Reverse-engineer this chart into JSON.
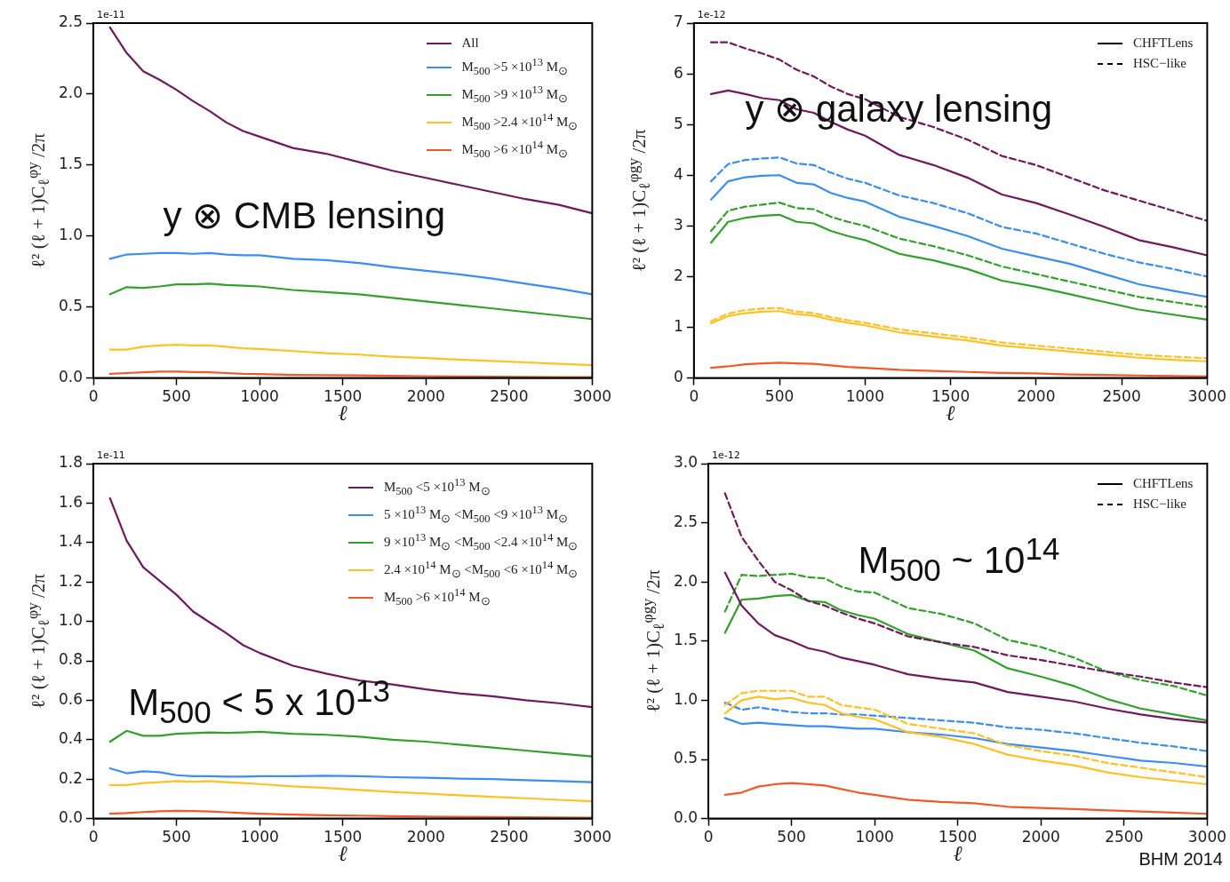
{
  "chart_data": [
    {
      "type": "line",
      "xlabel": "ℓ",
      "ylabel": "ℓ² (ℓ + 1)C$_{ℓ}$$^{φy}$ /2π",
      "annotations": [
        "1e-11",
        "y ⊗ CMB lensing"
      ],
      "legend": "top right",
      "grid": false,
      "marker": "none",
      "xlim": [
        0,
        3000
      ],
      "xticks": [
        0,
        500,
        1000,
        1500,
        2000,
        2500,
        3000
      ],
      "ylim": [
        0,
        2.5
      ],
      "yticks": [
        {
          "value": 0,
          "label": "0.0"
        },
        0.5,
        {
          "value": 1,
          "label": "1.0"
        },
        1.5,
        {
          "value": 2,
          "label": "2.0"
        },
        2.5
      ],
      "x": [
        100,
        200,
        300,
        400,
        500,
        600,
        700,
        800,
        900,
        1000,
        1200,
        1400,
        1600,
        1800,
        2000,
        2200,
        2400,
        2600,
        2800,
        3000
      ],
      "series": [
        {
          "name": "All",
          "color": "#6e1a5e",
          "line_style": "solid",
          "values": [
            2.47,
            2.29,
            2.16,
            2.1,
            2.03,
            1.95,
            1.88,
            1.8,
            1.74,
            1.7,
            1.62,
            1.58,
            1.52,
            1.46,
            1.41,
            1.36,
            1.31,
            1.26,
            1.22,
            1.16
          ]
        },
        {
          "name": "M$_{500}$ >5 ×10$^{13}$ M$_{⊙}$",
          "color": "#3b8df0",
          "line_style": "solid",
          "values": [
            0.84,
            0.87,
            0.875,
            0.88,
            0.88,
            0.875,
            0.88,
            0.87,
            0.865,
            0.865,
            0.84,
            0.83,
            0.81,
            0.78,
            0.755,
            0.73,
            0.7,
            0.665,
            0.63,
            0.59
          ]
        },
        {
          "name": "M$_{500}$ >9 ×10$^{13}$ M$_{⊙}$",
          "color": "#33a02c",
          "line_style": "solid",
          "values": [
            0.59,
            0.64,
            0.635,
            0.645,
            0.66,
            0.66,
            0.665,
            0.655,
            0.65,
            0.645,
            0.62,
            0.605,
            0.59,
            0.565,
            0.54,
            0.515,
            0.49,
            0.465,
            0.44,
            0.415
          ]
        },
        {
          "name": "M$_{500}$ >2.4 ×10$^{14}$ M$_{⊙}$",
          "color": "#ffc125",
          "line_style": "solid",
          "values": [
            0.2,
            0.2,
            0.22,
            0.23,
            0.235,
            0.23,
            0.23,
            0.22,
            0.21,
            0.205,
            0.19,
            0.175,
            0.165,
            0.15,
            0.14,
            0.13,
            0.12,
            0.11,
            0.1,
            0.09
          ]
        },
        {
          "name": "M$_{500}$ >6 ×10$^{14}$ M$_{⊙}$",
          "color": "#f05a28",
          "line_style": "solid",
          "values": [
            0.03,
            0.035,
            0.04,
            0.045,
            0.045,
            0.042,
            0.04,
            0.035,
            0.03,
            0.028,
            0.022,
            0.02,
            0.018,
            0.015,
            0.013,
            0.011,
            0.01,
            0.008,
            0.007,
            0.006
          ]
        }
      ]
    },
    {
      "type": "line",
      "xlabel": "ℓ",
      "ylabel": "ℓ² (ℓ + 1)C$_{ℓ}$$^{φgy}$ /2π",
      "annotations": [
        "1e-12",
        "y ⊗ galaxy lensing"
      ],
      "legend": "top right",
      "grid": false,
      "marker": "none",
      "xlim": [
        0,
        3000
      ],
      "xticks": [
        0,
        500,
        1000,
        1500,
        2000,
        2500,
        3000
      ],
      "ylim": [
        0,
        7
      ],
      "yticks": [
        0,
        1,
        2,
        3,
        4,
        5,
        6,
        7
      ],
      "x": [
        100,
        200,
        300,
        400,
        500,
        600,
        700,
        800,
        900,
        1000,
        1200,
        1400,
        1600,
        1800,
        2000,
        2200,
        2400,
        2600,
        2800,
        3000
      ],
      "series": [
        {
          "name": "CHFTLens",
          "color": "#000000",
          "line_style": "solid",
          "values": [
            null,
            null,
            null,
            null,
            null,
            null,
            null,
            null,
            null,
            null,
            null,
            null,
            null,
            null,
            null,
            null,
            null,
            null,
            null,
            null
          ]
        },
        {
          "name": "HSC−like",
          "color": "#000000",
          "line_style": "dashed",
          "values": [
            null,
            null,
            null,
            null,
            null,
            null,
            null,
            null,
            null,
            null,
            null,
            null,
            null,
            null,
            null,
            null,
            null,
            null,
            null,
            null
          ]
        },
        {
          "color": "#6e1a5e",
          "line_style": "solid",
          "values": [
            5.6,
            5.67,
            5.6,
            5.52,
            5.48,
            5.3,
            5.23,
            5.05,
            4.9,
            4.78,
            4.4,
            4.2,
            3.95,
            3.62,
            3.45,
            3.22,
            2.98,
            2.72,
            2.58,
            2.42
          ]
        },
        {
          "color": "#6e1a5e",
          "line_style": "dashed",
          "values": [
            6.62,
            6.62,
            6.5,
            6.4,
            6.28,
            6.08,
            5.95,
            5.75,
            5.6,
            5.5,
            5.15,
            4.95,
            4.7,
            4.38,
            4.2,
            3.95,
            3.7,
            3.5,
            3.3,
            3.1
          ]
        },
        {
          "color": "#3b8df0",
          "line_style": "solid",
          "values": [
            3.52,
            3.88,
            3.96,
            3.99,
            4.0,
            3.85,
            3.82,
            3.65,
            3.55,
            3.48,
            3.18,
            3.0,
            2.8,
            2.55,
            2.4,
            2.25,
            2.05,
            1.85,
            1.72,
            1.6
          ]
        },
        {
          "color": "#3b8df0",
          "line_style": "dashed",
          "values": [
            3.88,
            4.22,
            4.3,
            4.33,
            4.35,
            4.23,
            4.2,
            4.05,
            3.93,
            3.85,
            3.6,
            3.45,
            3.25,
            2.98,
            2.85,
            2.65,
            2.45,
            2.28,
            2.15,
            2.0
          ]
        },
        {
          "color": "#33a02c",
          "line_style": "solid",
          "values": [
            2.67,
            3.08,
            3.16,
            3.2,
            3.22,
            3.08,
            3.05,
            2.9,
            2.8,
            2.72,
            2.45,
            2.32,
            2.15,
            1.92,
            1.8,
            1.65,
            1.5,
            1.35,
            1.25,
            1.15
          ]
        },
        {
          "color": "#33a02c",
          "line_style": "dashed",
          "values": [
            2.9,
            3.3,
            3.38,
            3.42,
            3.46,
            3.35,
            3.33,
            3.18,
            3.08,
            3.0,
            2.75,
            2.6,
            2.42,
            2.2,
            2.05,
            1.9,
            1.75,
            1.6,
            1.5,
            1.4
          ]
        },
        {
          "color": "#ffc125",
          "line_style": "solid",
          "values": [
            1.08,
            1.22,
            1.28,
            1.31,
            1.32,
            1.26,
            1.23,
            1.15,
            1.09,
            1.04,
            0.9,
            0.82,
            0.74,
            0.64,
            0.58,
            0.52,
            0.46,
            0.4,
            0.36,
            0.33
          ]
        },
        {
          "color": "#ffc125",
          "line_style": "dashed",
          "values": [
            1.12,
            1.27,
            1.34,
            1.37,
            1.38,
            1.31,
            1.28,
            1.2,
            1.14,
            1.09,
            0.96,
            0.88,
            0.8,
            0.7,
            0.64,
            0.58,
            0.52,
            0.46,
            0.42,
            0.39
          ]
        },
        {
          "color": "#f05a28",
          "line_style": "solid",
          "values": [
            0.2,
            0.23,
            0.27,
            0.29,
            0.3,
            0.29,
            0.28,
            0.25,
            0.22,
            0.2,
            0.16,
            0.14,
            0.12,
            0.1,
            0.09,
            0.07,
            0.06,
            0.05,
            0.04,
            0.03
          ]
        }
      ]
    },
    {
      "type": "line",
      "xlabel": "ℓ",
      "ylabel": "ℓ² (ℓ + 1)C$_{ℓ}$$^{φy}$ /2π",
      "annotations": [
        "1e-11",
        "M$_{500}$ < 5 x 10$^{13}$"
      ],
      "legend": "top right",
      "grid": false,
      "marker": "none",
      "xlim": [
        0,
        3000
      ],
      "xticks": [
        0,
        500,
        1000,
        1500,
        2000,
        2500,
        3000
      ],
      "ylim": [
        0,
        1.8
      ],
      "yticks": [
        {
          "value": 0,
          "label": "0.0"
        },
        0.2,
        0.4,
        0.6,
        0.8,
        {
          "value": 1,
          "label": "1.0"
        },
        1.2,
        1.4,
        1.6,
        1.8
      ],
      "x": [
        100,
        200,
        300,
        400,
        500,
        600,
        700,
        800,
        900,
        1000,
        1200,
        1400,
        1600,
        1800,
        2000,
        2200,
        2400,
        2600,
        2800,
        3000
      ],
      "series": [
        {
          "name": "M$_{500}$ <5 ×10$^{13}$ M$_{⊙}$",
          "color": "#6e1a5e",
          "line_style": "solid",
          "values": [
            1.625,
            1.41,
            1.275,
            1.205,
            1.135,
            1.05,
            0.995,
            0.94,
            0.88,
            0.84,
            0.775,
            0.735,
            0.7,
            0.68,
            0.655,
            0.635,
            0.62,
            0.6,
            0.585,
            0.565
          ]
        },
        {
          "name": "5 ×10$^{13}$ M$_{⊙}$ <M$_{500}$ <9 ×10$^{13}$ M$_{⊙}$",
          "color": "#3b8df0",
          "line_style": "solid",
          "values": [
            0.255,
            0.23,
            0.24,
            0.235,
            0.22,
            0.215,
            0.215,
            0.213,
            0.213,
            0.215,
            0.215,
            0.217,
            0.215,
            0.21,
            0.207,
            0.203,
            0.2,
            0.195,
            0.19,
            0.185
          ]
        },
        {
          "name": "9 ×10$^{13}$ M$_{⊙}$ <M$_{500}$ <2.4 ×10$^{14}$ M$_{⊙}$",
          "color": "#33a02c",
          "line_style": "solid",
          "values": [
            0.39,
            0.445,
            0.42,
            0.42,
            0.43,
            0.433,
            0.437,
            0.435,
            0.437,
            0.44,
            0.43,
            0.425,
            0.415,
            0.4,
            0.39,
            0.375,
            0.36,
            0.345,
            0.33,
            0.315
          ]
        },
        {
          "name": "2.4 ×10$^{14}$ M$_{⊙}$ <M$_{500}$ <6 ×10$^{14}$ M$_{⊙}$",
          "color": "#ffc125",
          "line_style": "solid",
          "values": [
            0.17,
            0.17,
            0.18,
            0.185,
            0.19,
            0.187,
            0.19,
            0.185,
            0.18,
            0.175,
            0.163,
            0.155,
            0.145,
            0.135,
            0.127,
            0.118,
            0.11,
            0.103,
            0.095,
            0.088
          ]
        },
        {
          "name": "M$_{500}$ >6 ×10$^{14}$ M$_{⊙}$",
          "color": "#f05a28",
          "line_style": "solid",
          "values": [
            0.025,
            0.028,
            0.033,
            0.037,
            0.039,
            0.038,
            0.036,
            0.032,
            0.028,
            0.025,
            0.02,
            0.017,
            0.015,
            0.012,
            0.01,
            0.009,
            0.008,
            0.007,
            0.006,
            0.005
          ]
        }
      ]
    },
    {
      "type": "line",
      "xlabel": "ℓ",
      "ylabel": "ℓ² (ℓ + 1)C$_{ℓ}$$^{φgy}$ /2π",
      "annotations": [
        "1e-12",
        "M$_{500}$ ~ 10$^{14}$",
        "BHM 2014"
      ],
      "legend": "top right",
      "grid": false,
      "marker": "none",
      "xlim": [
        0,
        3000
      ],
      "xticks": [
        0,
        500,
        1000,
        1500,
        2000,
        2500,
        3000
      ],
      "ylim": [
        0,
        3
      ],
      "yticks": [
        {
          "value": 0,
          "label": "0.0"
        },
        0.5,
        {
          "value": 1,
          "label": "1.0"
        },
        1.5,
        {
          "value": 2,
          "label": "2.0"
        },
        2.5,
        {
          "value": 3,
          "label": "3.0"
        }
      ],
      "x": [
        100,
        200,
        300,
        400,
        500,
        600,
        700,
        800,
        900,
        1000,
        1200,
        1400,
        1600,
        1800,
        2000,
        2200,
        2400,
        2600,
        2800,
        3000
      ],
      "series": [
        {
          "name": "CHFTLens",
          "color": "#000000",
          "line_style": "solid",
          "values": [
            null,
            null,
            null,
            null,
            null,
            null,
            null,
            null,
            null,
            null,
            null,
            null,
            null,
            null,
            null,
            null,
            null,
            null,
            null,
            null
          ]
        },
        {
          "name": "HSC−like",
          "color": "#000000",
          "line_style": "dashed",
          "values": [
            null,
            null,
            null,
            null,
            null,
            null,
            null,
            null,
            null,
            null,
            null,
            null,
            null,
            null,
            null,
            null,
            null,
            null,
            null,
            null
          ]
        },
        {
          "color": "#6e1a5e",
          "line_style": "solid",
          "values": [
            2.08,
            1.8,
            1.65,
            1.55,
            1.5,
            1.44,
            1.41,
            1.36,
            1.33,
            1.3,
            1.22,
            1.18,
            1.15,
            1.07,
            1.03,
            0.99,
            0.93,
            0.88,
            0.84,
            0.81
          ]
        },
        {
          "color": "#6e1a5e",
          "line_style": "dashed",
          "values": [
            2.75,
            2.38,
            2.18,
            2.0,
            1.93,
            1.84,
            1.8,
            1.74,
            1.69,
            1.65,
            1.54,
            1.49,
            1.45,
            1.38,
            1.34,
            1.29,
            1.24,
            1.2,
            1.15,
            1.11
          ]
        },
        {
          "color": "#33a02c",
          "line_style": "solid",
          "values": [
            1.57,
            1.85,
            1.86,
            1.88,
            1.89,
            1.84,
            1.83,
            1.76,
            1.72,
            1.69,
            1.56,
            1.49,
            1.42,
            1.27,
            1.2,
            1.12,
            1.01,
            0.93,
            0.88,
            0.83
          ]
        },
        {
          "color": "#33a02c",
          "line_style": "dashed",
          "values": [
            1.75,
            2.06,
            2.05,
            2.06,
            2.07,
            2.04,
            2.03,
            1.96,
            1.92,
            1.91,
            1.78,
            1.73,
            1.65,
            1.51,
            1.45,
            1.36,
            1.24,
            1.17,
            1.12,
            1.04
          ]
        },
        {
          "color": "#ffc125",
          "line_style": "solid",
          "values": [
            0.89,
            1.0,
            1.03,
            1.01,
            1.02,
            0.98,
            0.96,
            0.89,
            0.86,
            0.84,
            0.73,
            0.69,
            0.63,
            0.54,
            0.49,
            0.45,
            0.39,
            0.35,
            0.32,
            0.29
          ]
        },
        {
          "color": "#ffc125",
          "line_style": "dashed",
          "values": [
            0.96,
            1.06,
            1.08,
            1.08,
            1.08,
            1.03,
            1.03,
            0.96,
            0.94,
            0.92,
            0.8,
            0.76,
            0.72,
            0.62,
            0.57,
            0.53,
            0.47,
            0.43,
            0.39,
            0.35
          ]
        },
        {
          "color": "#3b8df0",
          "line_style": "solid",
          "values": [
            0.85,
            0.8,
            0.81,
            0.8,
            0.79,
            0.78,
            0.78,
            0.77,
            0.76,
            0.76,
            0.73,
            0.71,
            0.68,
            0.63,
            0.6,
            0.57,
            0.53,
            0.49,
            0.47,
            0.44
          ]
        },
        {
          "color": "#3b8df0",
          "line_style": "dashed",
          "values": [
            0.98,
            0.92,
            0.94,
            0.92,
            0.9,
            0.89,
            0.89,
            0.88,
            0.88,
            0.87,
            0.85,
            0.83,
            0.81,
            0.77,
            0.75,
            0.72,
            0.68,
            0.64,
            0.61,
            0.57
          ]
        },
        {
          "color": "#f05a28",
          "line_style": "solid",
          "values": [
            0.2,
            0.22,
            0.27,
            0.29,
            0.3,
            0.29,
            0.28,
            0.25,
            0.22,
            0.2,
            0.16,
            0.14,
            0.13,
            0.1,
            0.09,
            0.08,
            0.07,
            0.06,
            0.05,
            0.04
          ]
        }
      ]
    }
  ]
}
